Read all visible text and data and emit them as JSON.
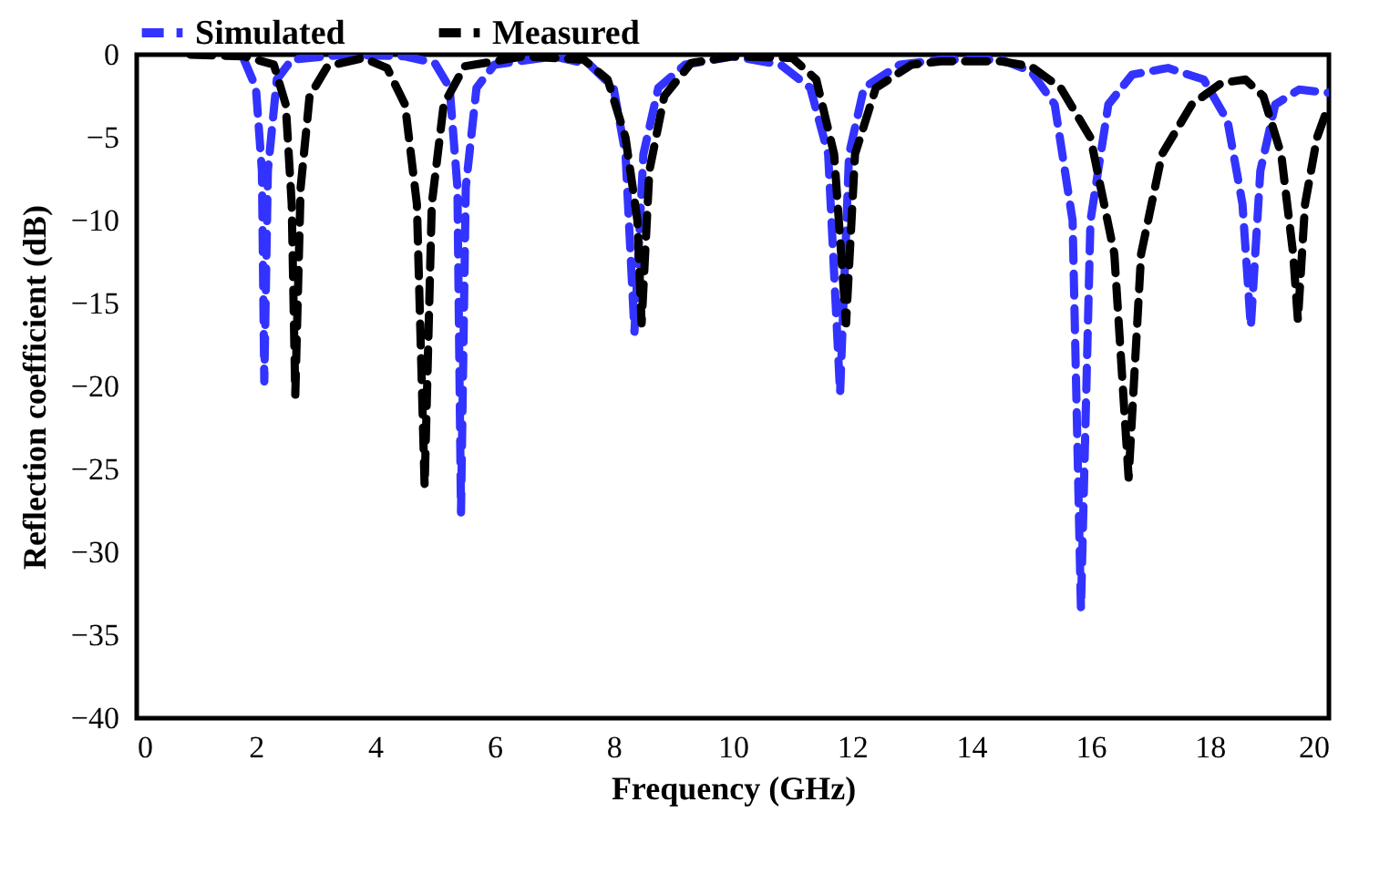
{
  "chart_data": {
    "type": "line",
    "xlabel": "Frequency (GHz)",
    "ylabel": "Reflection coefficient (dB)",
    "xlim": [
      0,
      20
    ],
    "xticks": [
      0,
      2,
      4,
      6,
      8,
      10,
      12,
      14,
      16,
      18,
      20
    ],
    "ylim": [
      -40,
      0
    ],
    "yticks": [
      -40,
      -35,
      -30,
      -25,
      -20,
      -15,
      -10,
      -5,
      0
    ],
    "grid": false,
    "legend": "top",
    "line_style": "dashed",
    "marker": "none",
    "series": [
      {
        "name": "Simulated",
        "color": "#3333ff",
        "x": [
          1.8,
          2.0,
          2.1,
          2.14,
          2.2,
          2.35,
          2.6,
          3.5,
          4.5,
          5.0,
          5.25,
          5.38,
          5.44,
          5.52,
          5.7,
          6.0,
          7.0,
          7.6,
          8.0,
          8.2,
          8.35,
          8.5,
          8.75,
          9.2,
          10.0,
          10.8,
          11.3,
          11.6,
          11.8,
          11.95,
          12.2,
          12.8,
          13.5,
          14.5,
          15.0,
          15.4,
          15.7,
          15.84,
          16.0,
          16.3,
          16.7,
          17.3,
          17.9,
          18.3,
          18.55,
          18.69,
          18.85,
          19.1,
          19.5,
          20
        ],
        "values": [
          -0.3,
          -2,
          -7,
          -19.7,
          -7,
          -1.5,
          -0.3,
          0,
          -0.1,
          -0.5,
          -2,
          -8,
          -27.6,
          -8,
          -2,
          -0.6,
          -0.1,
          -0.6,
          -2,
          -6,
          -16.7,
          -6,
          -2,
          -0.6,
          -0.1,
          -0.6,
          -2,
          -6,
          -20.4,
          -6,
          -2,
          -0.6,
          -0.3,
          -0.3,
          -1,
          -3,
          -10,
          -33.4,
          -10,
          -3,
          -1.2,
          -0.8,
          -1.5,
          -4,
          -9,
          -16.4,
          -7,
          -3,
          -2.1,
          -2.3
        ]
      },
      {
        "name": "Measured",
        "color": "#000000",
        "x": [
          0.9,
          1.8,
          2.3,
          2.5,
          2.6,
          2.66,
          2.75,
          2.9,
          3.2,
          3.8,
          4.2,
          4.5,
          4.7,
          4.83,
          4.95,
          5.15,
          5.5,
          6.5,
          7.5,
          7.9,
          8.2,
          8.4,
          8.47,
          8.6,
          8.85,
          9.3,
          10,
          11.0,
          11.4,
          11.7,
          11.9,
          12.05,
          12.4,
          13,
          13.5,
          14.5,
          15,
          15.5,
          16.0,
          16.4,
          16.64,
          16.85,
          17.2,
          17.7,
          18.2,
          18.6,
          18.9,
          19.2,
          19.4,
          19.48,
          19.6,
          19.8,
          20
        ],
        "values": [
          0,
          -0.1,
          -0.6,
          -3,
          -9,
          -20.5,
          -8,
          -2.5,
          -0.7,
          -0.2,
          -0.8,
          -3,
          -9,
          -26,
          -9,
          -3,
          -0.7,
          -0.1,
          -0.3,
          -1.5,
          -5,
          -10,
          -16.2,
          -7,
          -2.5,
          -0.5,
          -0.1,
          -0.2,
          -1.5,
          -6,
          -16.2,
          -6,
          -2,
          -0.6,
          -0.4,
          -0.4,
          -0.7,
          -2,
          -5,
          -12,
          -25.5,
          -12,
          -6,
          -3,
          -1.7,
          -1.5,
          -2.5,
          -6,
          -12,
          -16,
          -9,
          -5,
          -3
        ]
      }
    ]
  }
}
